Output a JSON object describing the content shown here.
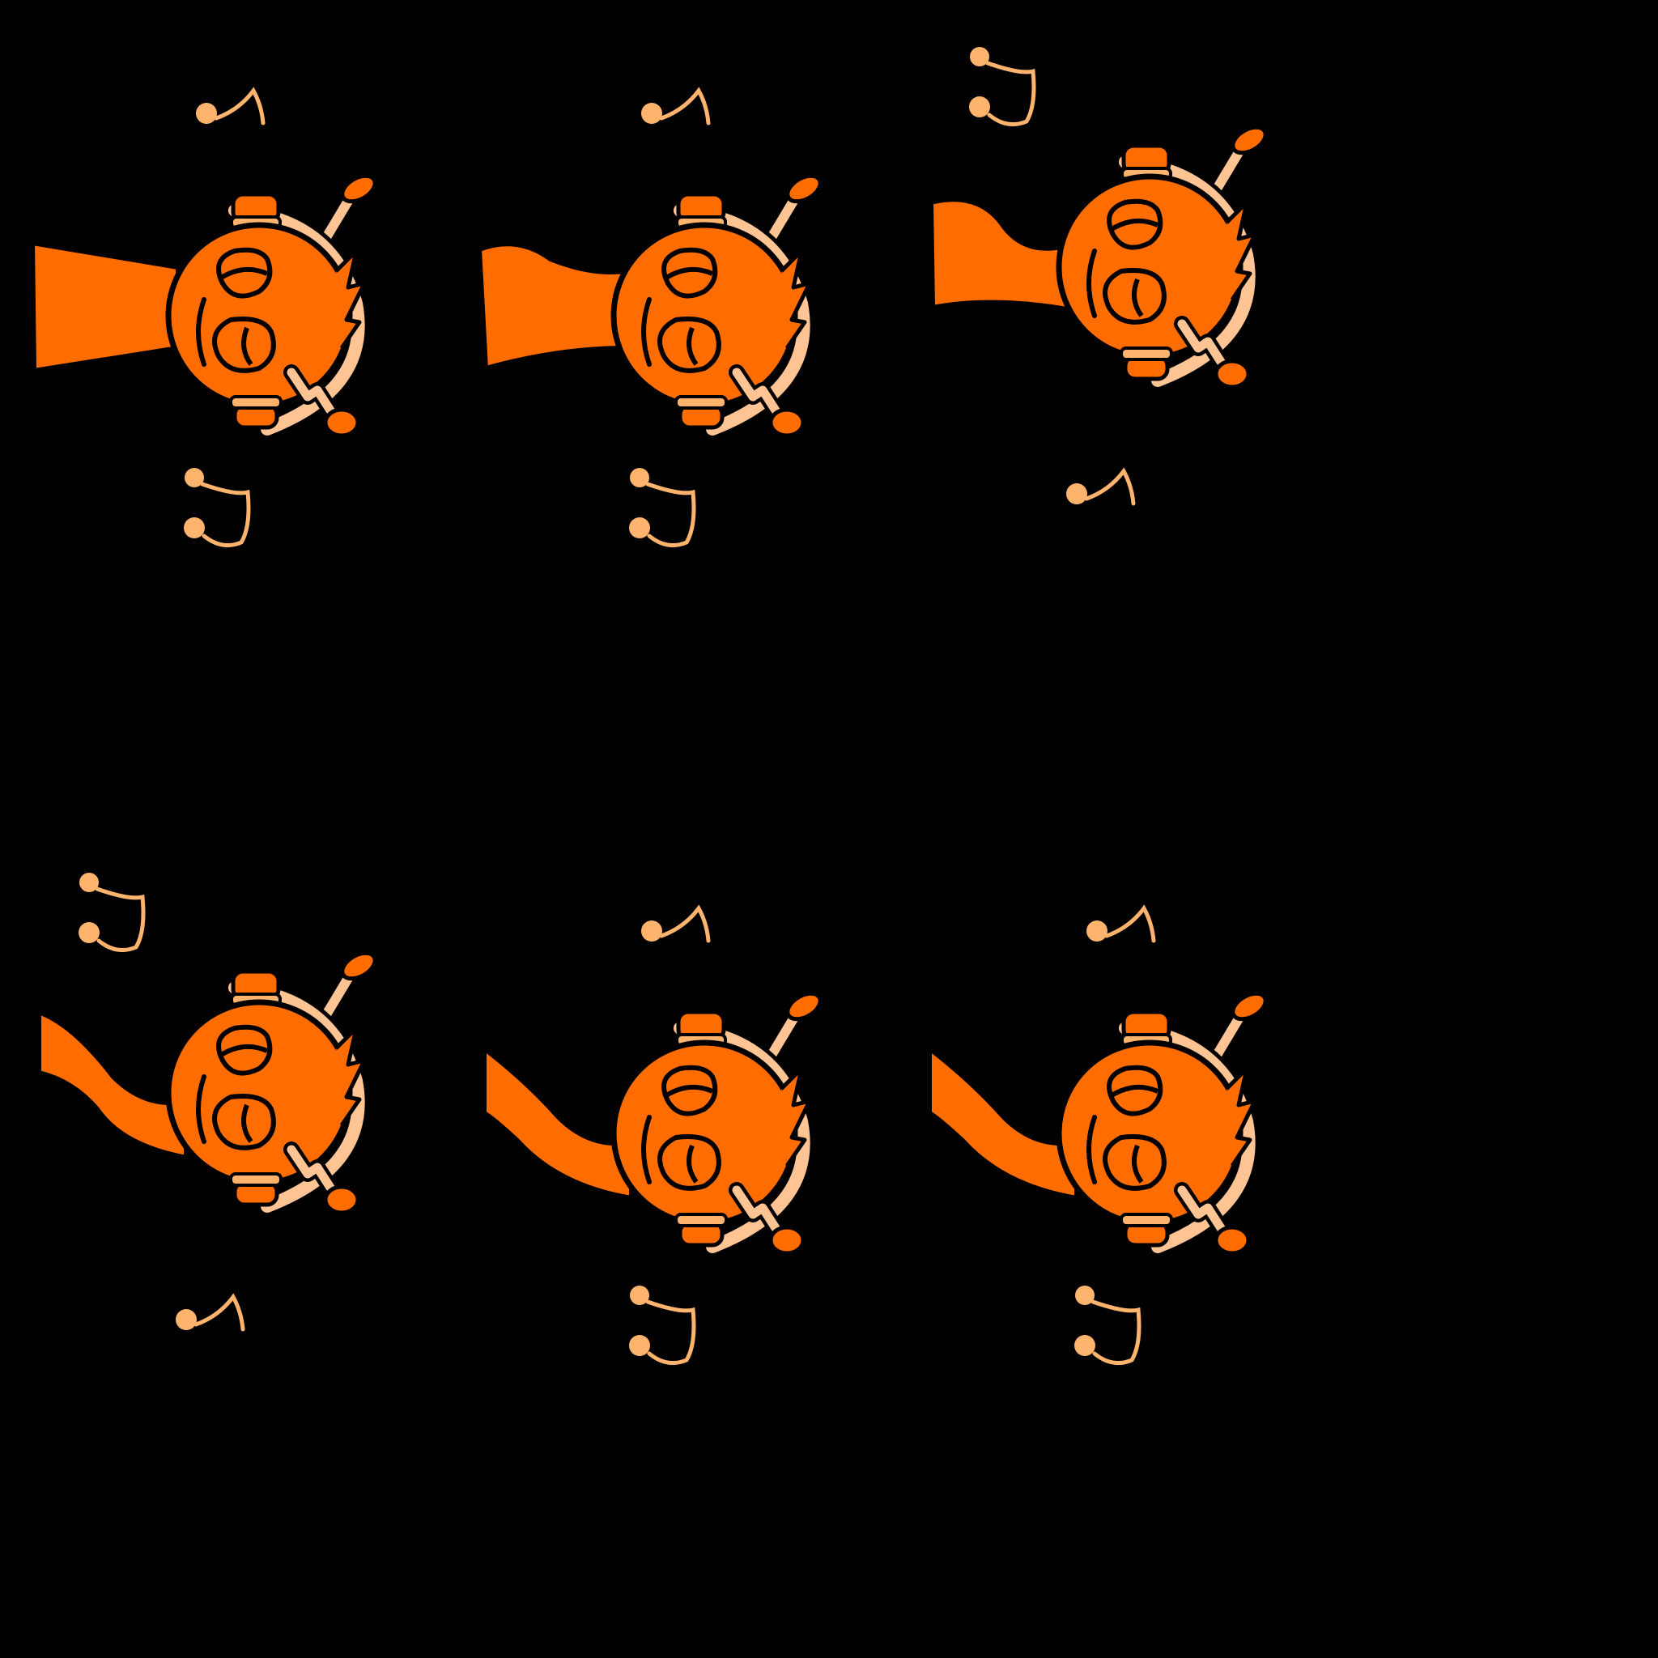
{
  "sprite_sheet": {
    "background": "#000000",
    "palette": {
      "body": "#FF6C00",
      "outline": "#000000",
      "accent": "#FFB46E",
      "headphone_band": "#FFC493"
    },
    "frames": [
      {
        "label": "",
        "cape": "straight",
        "notes": [
          "note-top-eighth",
          "note-bottom-hook"
        ]
      },
      {
        "label": "",
        "cape": "slight-wave",
        "notes": [
          "note-top-eighth",
          "note-bottom-hook"
        ]
      },
      {
        "label": "",
        "cape": "wave",
        "notes": [
          "note-top-hook",
          "note-bottom-eighth"
        ]
      },
      {
        "label": "",
        "cape": "downward",
        "notes": [
          "note-top-hook",
          "note-bottom-eighth"
        ]
      },
      {
        "label": "",
        "cape": "downward-wave",
        "notes": [
          "note-top-eighth",
          "note-bottom-hook"
        ]
      },
      {
        "label": "",
        "cape": "downward-wave",
        "notes": [
          "note-top-eighth",
          "note-bottom-hook"
        ]
      }
    ]
  }
}
